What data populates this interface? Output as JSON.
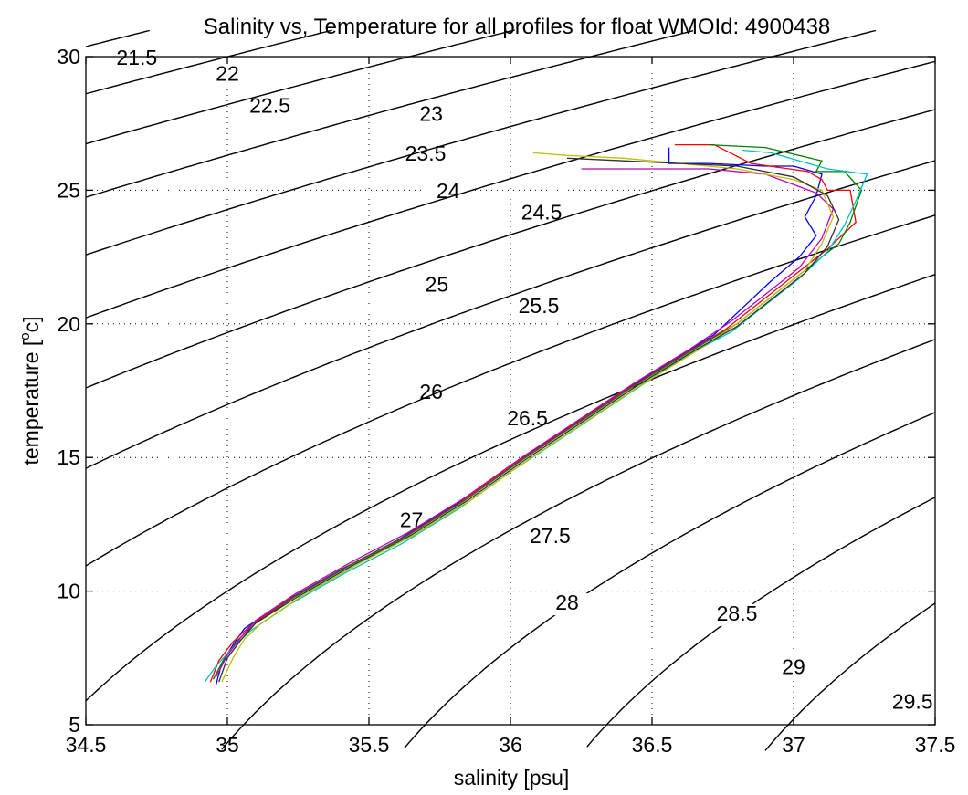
{
  "chart_data": {
    "type": "line",
    "title": "Salinity vs, Temperature for all profiles for float WMOId: 4900438",
    "xlabel": "salinity [psu]",
    "ylabel_main": "temperature [",
    "ylabel_sup": "o",
    "ylabel_tail": "c]",
    "xlim": [
      34.5,
      37.5
    ],
    "ylim": [
      5,
      30
    ],
    "xticks": [
      34.5,
      35,
      35.5,
      36,
      36.5,
      37,
      37.5
    ],
    "xtick_labels": [
      "34.5",
      "35",
      "35.5",
      "36",
      "36.5",
      "37",
      "37.5"
    ],
    "yticks": [
      5,
      10,
      15,
      20,
      25,
      30
    ],
    "ytick_labels": [
      "5",
      "10",
      "15",
      "20",
      "25",
      "30"
    ],
    "grid": true,
    "contours": [
      {
        "label": "21.5",
        "label_at": [
          34.68,
          29.7
        ]
      },
      {
        "label": "22",
        "label_at": [
          35.0,
          29.1
        ]
      },
      {
        "label": "22.5",
        "label_at": [
          35.15,
          27.9
        ]
      },
      {
        "label": "23",
        "label_at": [
          35.72,
          27.6
        ]
      },
      {
        "label": "23.5",
        "label_at": [
          35.7,
          26.1
        ]
      },
      {
        "label": "24",
        "label_at": [
          35.78,
          24.7
        ]
      },
      {
        "label": "24.5",
        "label_at": [
          36.11,
          23.9
        ]
      },
      {
        "label": "25",
        "label_at": [
          35.74,
          21.2
        ]
      },
      {
        "label": "25.5",
        "label_at": [
          36.1,
          20.4
        ]
      },
      {
        "label": "26",
        "label_at": [
          35.72,
          17.2
        ]
      },
      {
        "label": "26.5",
        "label_at": [
          36.06,
          16.2
        ]
      },
      {
        "label": "27",
        "label_at": [
          35.65,
          12.4
        ]
      },
      {
        "label": "27.5",
        "label_at": [
          36.14,
          11.8
        ]
      },
      {
        "label": "28",
        "label_at": [
          36.2,
          9.3
        ]
      },
      {
        "label": "28.5",
        "label_at": [
          36.8,
          8.9
        ]
      },
      {
        "label": "29",
        "label_at": [
          37.0,
          6.9
        ]
      },
      {
        "label": "29.5",
        "label_at": [
          37.42,
          5.6
        ]
      }
    ],
    "series": [
      {
        "color": "#0000ff",
        "x": [
          34.96,
          34.98,
          35.02,
          35.06,
          35.2,
          35.4,
          35.6,
          35.8,
          36.0,
          36.2,
          36.4,
          36.6,
          36.72,
          36.82,
          36.92,
          37.02,
          37.08,
          37.04,
          37.08,
          37.1,
          37.0,
          36.9,
          36.7,
          36.56,
          36.56
        ],
        "y": [
          6.5,
          7.3,
          8.0,
          8.6,
          9.6,
          10.8,
          11.9,
          13.2,
          14.7,
          16.1,
          17.5,
          18.8,
          19.6,
          20.6,
          21.6,
          22.5,
          23.3,
          24.0,
          24.8,
          25.6,
          25.9,
          25.9,
          26.0,
          26.0,
          26.6
        ]
      },
      {
        "color": "#ff0000",
        "x": [
          34.94,
          34.97,
          35.02,
          35.08,
          35.22,
          35.42,
          35.62,
          35.82,
          36.02,
          36.22,
          36.42,
          36.62,
          36.76,
          36.88,
          37.0,
          37.12,
          37.22,
          37.2,
          37.12,
          37.1,
          37.05,
          36.85,
          36.72,
          36.58
        ],
        "y": [
          6.6,
          7.4,
          8.1,
          8.7,
          9.7,
          10.9,
          12.0,
          13.3,
          14.8,
          16.2,
          17.6,
          18.9,
          19.8,
          20.8,
          21.8,
          22.8,
          23.8,
          25.0,
          25.0,
          25.4,
          25.7,
          26.0,
          26.7,
          26.7
        ]
      },
      {
        "color": "#008000",
        "x": [
          34.95,
          34.99,
          35.04,
          35.1,
          35.24,
          35.44,
          35.64,
          35.84,
          36.04,
          36.24,
          36.44,
          36.64,
          36.8,
          36.92,
          37.04,
          37.16,
          37.2,
          37.24,
          37.18,
          37.08,
          37.1,
          36.9,
          36.7
        ],
        "y": [
          6.7,
          7.5,
          8.2,
          8.8,
          9.8,
          11.0,
          12.1,
          13.4,
          14.9,
          16.3,
          17.7,
          19.0,
          20.0,
          21.0,
          22.0,
          23.0,
          23.8,
          25.0,
          25.7,
          25.7,
          26.1,
          26.6,
          26.7
        ]
      },
      {
        "color": "#00bfbf",
        "x": [
          34.92,
          34.96,
          35.02,
          35.08,
          35.22,
          35.42,
          35.62,
          35.82,
          36.02,
          36.22,
          36.42,
          36.62,
          36.78,
          36.9,
          37.02,
          37.12,
          37.18,
          37.22,
          37.26,
          37.12,
          36.92,
          36.82
        ],
        "y": [
          6.6,
          7.2,
          7.9,
          8.5,
          9.5,
          10.7,
          11.8,
          13.1,
          14.6,
          16.0,
          17.4,
          18.8,
          19.7,
          20.7,
          21.7,
          22.7,
          23.7,
          24.6,
          25.6,
          25.8,
          26.4,
          26.5
        ]
      },
      {
        "color": "#bf00bf",
        "x": [
          34.96,
          35.0,
          35.05,
          35.1,
          35.24,
          35.44,
          35.64,
          35.84,
          36.04,
          36.24,
          36.44,
          36.64,
          36.78,
          36.9,
          37.02,
          37.1,
          37.14,
          37.08,
          36.9,
          36.7,
          36.5,
          36.3,
          36.25
        ],
        "y": [
          6.8,
          7.6,
          8.3,
          8.9,
          9.9,
          11.1,
          12.2,
          13.5,
          15.0,
          16.4,
          17.8,
          19.1,
          20.1,
          21.1,
          22.1,
          23.2,
          24.3,
          24.9,
          25.6,
          25.8,
          25.8,
          25.8,
          25.8
        ]
      },
      {
        "color": "#bfbf00",
        "x": [
          34.98,
          35.02,
          35.06,
          35.12,
          35.26,
          35.46,
          35.66,
          35.86,
          36.06,
          36.26,
          36.46,
          36.66,
          36.8,
          36.92,
          37.04,
          37.1,
          37.14,
          37.1,
          37.0,
          36.8,
          36.6,
          36.4,
          36.2,
          36.08
        ],
        "y": [
          6.6,
          7.5,
          8.2,
          8.8,
          9.8,
          11.0,
          12.1,
          13.4,
          14.9,
          16.3,
          17.7,
          19.0,
          20.0,
          21.0,
          22.0,
          23.0,
          24.0,
          25.0,
          25.4,
          25.8,
          26.0,
          26.2,
          26.3,
          26.4
        ]
      },
      {
        "color": "#303030",
        "x": [
          34.97,
          35.0,
          35.05,
          35.1,
          35.25,
          35.45,
          35.65,
          35.85,
          36.05,
          36.25,
          36.45,
          36.65,
          36.8,
          36.92,
          37.04,
          37.12,
          37.16,
          37.12,
          37.0,
          36.8,
          36.6,
          36.4,
          36.2
        ],
        "y": [
          6.6,
          7.5,
          8.2,
          8.8,
          9.8,
          11.0,
          12.1,
          13.4,
          14.9,
          16.3,
          17.7,
          19.0,
          19.9,
          20.9,
          21.9,
          22.9,
          23.9,
          24.8,
          25.5,
          25.9,
          26.0,
          26.1,
          26.2
        ]
      }
    ]
  }
}
